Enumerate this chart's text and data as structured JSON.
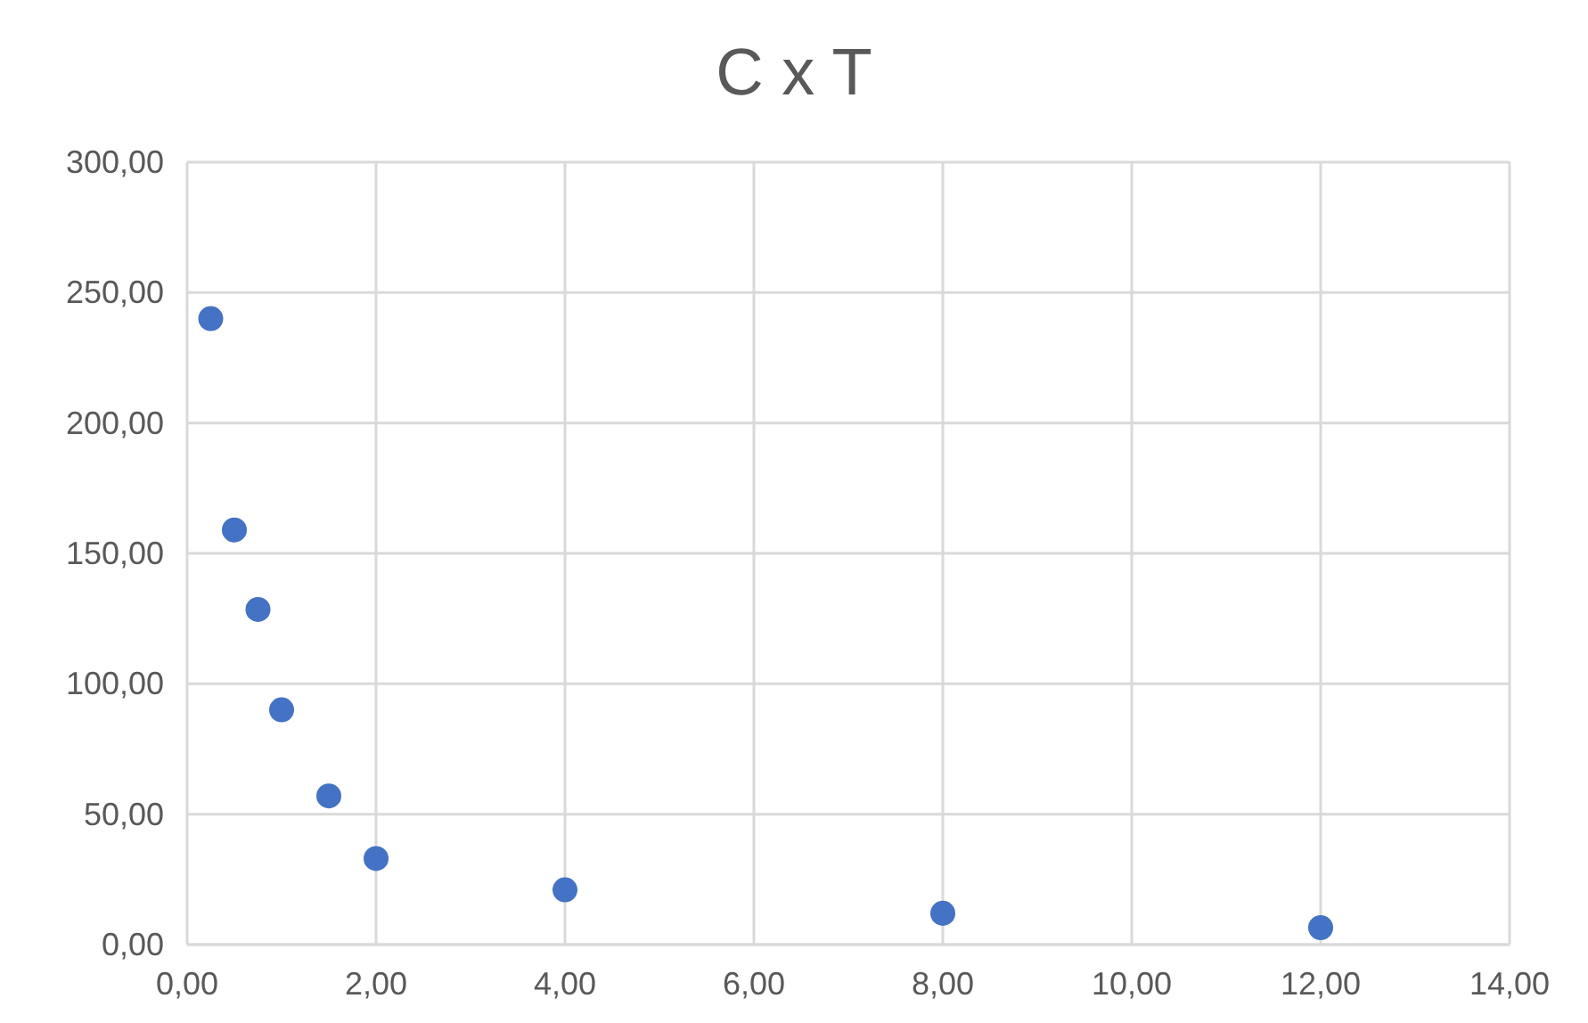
{
  "chart_data": {
    "type": "scatter",
    "title": "C x T",
    "color": "#4472c4",
    "marker": "circle",
    "grid": true,
    "x": [
      0.25,
      0.5,
      0.75,
      1,
      1.5,
      2,
      4,
      8,
      12
    ],
    "values": [
      240,
      159,
      128.5,
      90,
      57,
      33,
      21,
      12,
      6.5
    ],
    "xlim": [
      0,
      14
    ],
    "ylim": [
      0,
      300
    ],
    "xticks": [
      {
        "value": 0,
        "label": "0,00"
      },
      {
        "value": 2,
        "label": "2,00"
      },
      {
        "value": 4,
        "label": "4,00"
      },
      {
        "value": 6,
        "label": "6,00"
      },
      {
        "value": 8,
        "label": "8,00"
      },
      {
        "value": 10,
        "label": "10,00"
      },
      {
        "value": 12,
        "label": "12,00"
      },
      {
        "value": 14,
        "label": "14,00"
      }
    ],
    "yticks": [
      {
        "value": 0,
        "label": "0,00"
      },
      {
        "value": 50,
        "label": "50,00"
      },
      {
        "value": 100,
        "label": "100,00"
      },
      {
        "value": 150,
        "label": "150,00"
      },
      {
        "value": 200,
        "label": "200,00"
      },
      {
        "value": 250,
        "label": "250,00"
      },
      {
        "value": 300,
        "label": "300,00"
      }
    ]
  }
}
